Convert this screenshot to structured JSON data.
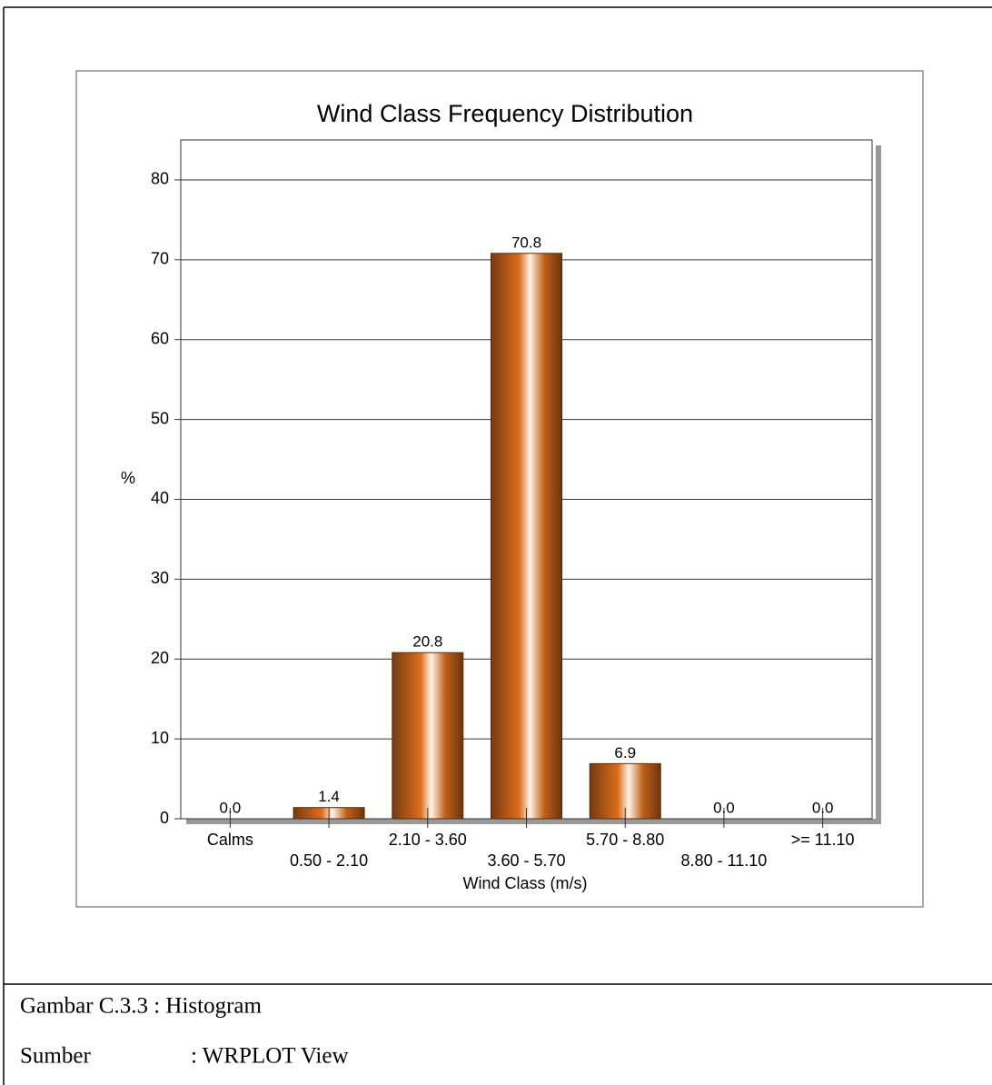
{
  "chart_data": {
    "type": "bar",
    "title": "Wind Class Frequency Distribution",
    "x_label": "Wind Class (m/s)",
    "y_label": "%",
    "categories": [
      "Calms",
      "0.50 - 2.10",
      "2.10 - 3.60",
      "3.60 - 5.70",
      "5.70 - 8.80",
      "8.80 - 11.10",
      ">= 11.10"
    ],
    "values": [
      0,
      1.4,
      20.8,
      70.8,
      6.9,
      0,
      0
    ],
    "value_labels": [
      "0.0",
      "1.4",
      "20.8",
      "70.8",
      "6.9",
      "0.0",
      "0.0"
    ],
    "color": "#c0601a",
    "ylim": [
      0,
      85
    ],
    "yticks": [
      0,
      10,
      20,
      30,
      40,
      50,
      60,
      70,
      80
    ],
    "grid": true
  },
  "caption": {
    "figure": "Gambar C.3.3 : Histogram",
    "source_label": "Sumber",
    "source": ": WRPLOT View"
  }
}
